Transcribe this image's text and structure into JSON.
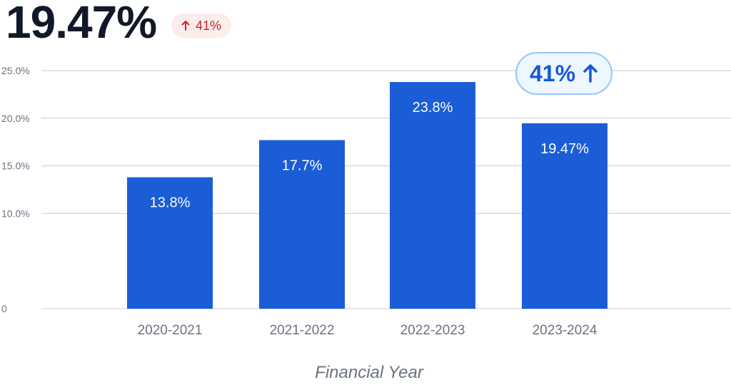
{
  "kpi": {
    "value": "19.47%",
    "delta_label": "41%",
    "delta_icon": "arrow-up-icon",
    "delta_color": "#c62828"
  },
  "callout": {
    "label": "41%",
    "icon": "arrow-up-icon"
  },
  "colors": {
    "bar": "#1a5dd6",
    "grid": "#c7cbd6",
    "axis_text": "#6b7280"
  },
  "chart_data": {
    "type": "bar",
    "title": "",
    "xlabel": "Financial Year",
    "ylabel": "",
    "categories": [
      "2020-2021",
      "2021-2022",
      "2022-2023",
      "2023-2024"
    ],
    "values": [
      13.8,
      17.7,
      23.8,
      19.47
    ],
    "data_labels": [
      "13.8%",
      "17.7%",
      "23.8%",
      "19.47%"
    ],
    "y_ticks": [
      0,
      10,
      15,
      20,
      25
    ],
    "y_tick_labels": [
      "0",
      "10.0%",
      "15.0%",
      "20.0%",
      "25.0%"
    ],
    "ylim": [
      0,
      25
    ],
    "grid": true,
    "legend": "none"
  }
}
